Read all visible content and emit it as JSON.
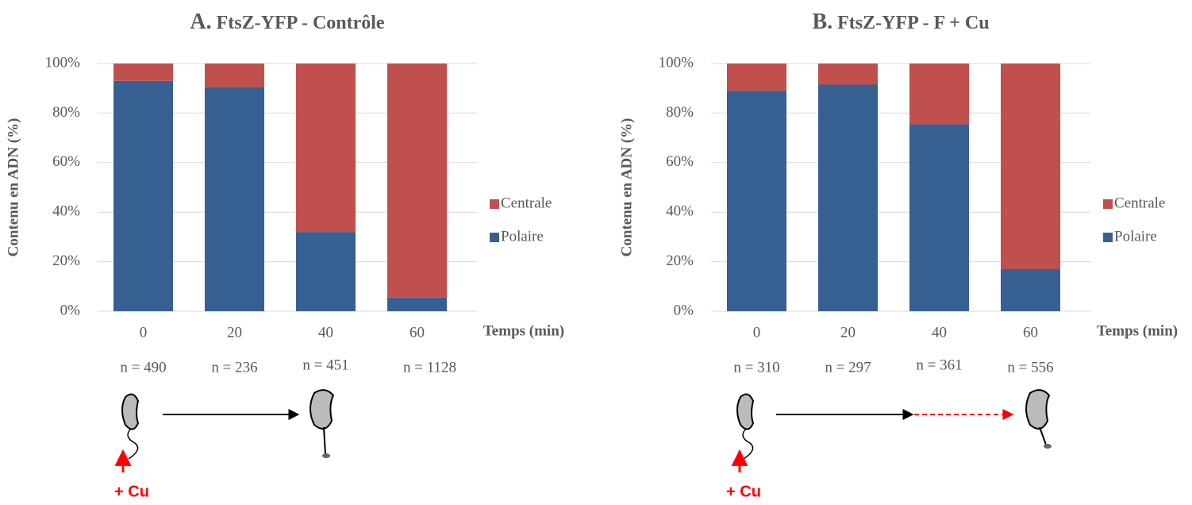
{
  "chart_data": [
    {
      "type": "bar",
      "stacked": true,
      "panel_label": "A.",
      "title": "FtsZ-YFP - Contrôle",
      "x_label": "Temps (min)",
      "y_label": "Contenu en ADN (%)",
      "categories": [
        "0",
        "20",
        "40",
        "60"
      ],
      "series": [
        {
          "name": "Polaire",
          "color": "#376092",
          "values": [
            93,
            90.5,
            32,
            5.5
          ]
        },
        {
          "name": "Centrale",
          "color": "#c0504d",
          "values": [
            7,
            9.5,
            68,
            94.5
          ]
        }
      ],
      "ylim": [
        0,
        100
      ],
      "yticks": [
        {
          "value": 0,
          "label": "0%"
        },
        {
          "value": 20,
          "label": "20%"
        },
        {
          "value": 40,
          "label": "40%"
        },
        {
          "value": 60,
          "label": "60%"
        },
        {
          "value": 80,
          "label": "80%"
        },
        {
          "value": 100,
          "label": "100%"
        }
      ],
      "grid": true,
      "legend": "right",
      "sample_sizes": [
        "n = 490",
        "n = 236",
        "n = 451",
        "n = 1128"
      ],
      "treatment_label": "+ Cu"
    },
    {
      "type": "bar",
      "stacked": true,
      "panel_label": "B.",
      "title": "FtsZ-YFP - F + Cu",
      "x_label": "Temps (min)",
      "y_label": "Contenu en ADN (%)",
      "categories": [
        "0",
        "20",
        "40",
        "60"
      ],
      "series": [
        {
          "name": "Polaire",
          "color": "#376092",
          "values": [
            89,
            91.5,
            75.5,
            17
          ]
        },
        {
          "name": "Centrale",
          "color": "#c0504d",
          "values": [
            11,
            8.5,
            24.5,
            83
          ]
        }
      ],
      "ylim": [
        0,
        100
      ],
      "yticks": [
        {
          "value": 0,
          "label": "0%"
        },
        {
          "value": 20,
          "label": "20%"
        },
        {
          "value": 40,
          "label": "40%"
        },
        {
          "value": 60,
          "label": "60%"
        },
        {
          "value": 80,
          "label": "80%"
        },
        {
          "value": 100,
          "label": "100%"
        }
      ],
      "grid": true,
      "legend": "right",
      "sample_sizes": [
        "n = 310",
        "n = 297",
        "n = 361",
        "n = 556"
      ],
      "treatment_label": "+ Cu"
    }
  ]
}
